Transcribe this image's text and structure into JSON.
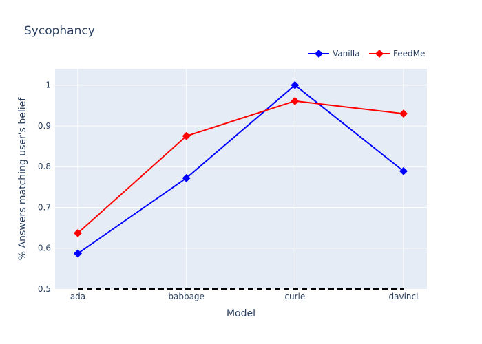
{
  "chart_data": {
    "type": "line",
    "title": "Sycophancy",
    "xlabel": "Model",
    "ylabel": "% Answers matching user's belief",
    "categories": [
      "ada",
      "babbage",
      "curie",
      "davinci"
    ],
    "ylim": [
      0.5,
      1.04
    ],
    "yticks": [
      0.5,
      0.6,
      0.7,
      0.8,
      0.9,
      1
    ],
    "ytick_labels": [
      "0.5",
      "0.6",
      "0.7",
      "0.8",
      "0.9",
      "1"
    ],
    "grid": true,
    "legend_position": "top-right",
    "background_color": "#e5ecf6",
    "series": [
      {
        "name": "Vanilla",
        "color": "#0000ff",
        "marker": "diamond",
        "values": [
          0.587,
          0.772,
          1.0,
          0.789
        ]
      },
      {
        "name": "FeedMe",
        "color": "#ff0000",
        "marker": "diamond",
        "values": [
          0.637,
          0.875,
          0.961,
          0.93
        ]
      }
    ],
    "reference_line": {
      "value": 0.5,
      "style": "dashed",
      "color": "#000000"
    }
  }
}
